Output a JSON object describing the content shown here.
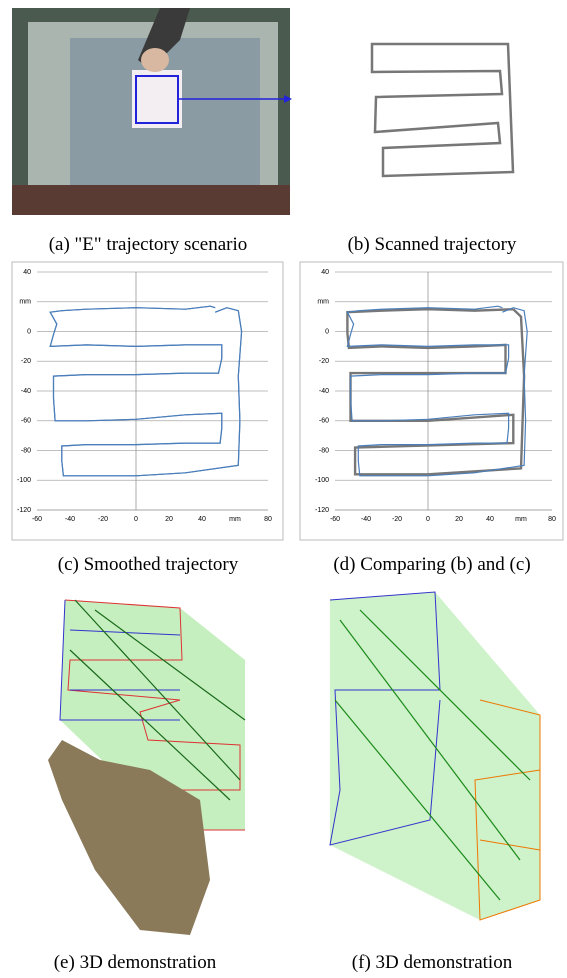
{
  "captions": [
    "(a) \"E\" trajectory scenario",
    "(b) Scanned trajectory",
    "(c) Smoothed trajectory",
    "(d) Comparing (b) and (c)",
    "(e) 3D demonstration",
    "(f) 3D demonstration"
  ],
  "chart_data": [
    {
      "type": "line",
      "xlim": [
        -60,
        80
      ],
      "ylim": [
        -120,
        40
      ],
      "xticks": [
        -60,
        -40,
        -20,
        0,
        20,
        40,
        {
          "value": 60,
          "label": "mm"
        },
        80
      ],
      "yticks": [
        -120,
        -100,
        -80,
        -60,
        -40,
        -20,
        0,
        {
          "value": 20,
          "label": "mm"
        },
        40
      ],
      "grid": true,
      "series": [
        {
          "color": "#4a7ebb",
          "x": [
            48,
            45,
            30,
            0,
            -30,
            -45,
            -52,
            -48,
            -50,
            -52,
            -30,
            0,
            30,
            52,
            52,
            50,
            30,
            0,
            -30,
            -50,
            -50,
            -49,
            -30,
            0,
            30,
            52,
            52,
            51,
            30,
            0,
            -30,
            -45,
            -45,
            -44,
            -20,
            0,
            30,
            62,
            63,
            62,
            64,
            62,
            55,
            48
          ],
          "y": [
            16,
            17,
            15,
            16,
            15,
            14,
            13,
            5,
            -2,
            -10,
            -9,
            -10,
            -9,
            -9,
            -18,
            -28,
            -28,
            -29,
            -29,
            -30,
            -45,
            -60,
            -60,
            -59,
            -56,
            -55,
            -65,
            -75,
            -75,
            -76,
            -76,
            -77,
            -87,
            -97,
            -97,
            -97,
            -95,
            -90,
            -60,
            -30,
            0,
            14,
            16,
            13
          ]
        },
        {
          "color": "#4a7ebb",
          "x": [
            48,
            45,
            30,
            0,
            -30,
            -45,
            -52,
            -48,
            -50,
            -52,
            -30,
            0,
            30,
            52,
            52,
            50,
            30,
            0,
            -30,
            -50,
            -50,
            -49,
            -30,
            0,
            30,
            52,
            52,
            51,
            30,
            0,
            -30,
            -45,
            -45,
            -44,
            -20,
            0,
            30,
            62,
            63,
            62,
            64,
            62,
            55,
            48
          ],
          "y": [
            16,
            17,
            15,
            16,
            15,
            14,
            13,
            5,
            -2,
            -10,
            -9,
            -10,
            -9,
            -9,
            -18,
            -28,
            -28,
            -29,
            -29,
            -30,
            -45,
            -60,
            -60,
            -59,
            -56,
            -55,
            -65,
            -75,
            -75,
            -76,
            -76,
            -77,
            -87,
            -97,
            -97,
            -97,
            -95,
            -90,
            -60,
            -30,
            0,
            14,
            16,
            13
          ]
        }
      ]
    },
    {
      "type": "line",
      "xlim": [
        -60,
        80
      ],
      "ylim": [
        -120,
        40
      ],
      "xticks": [
        -60,
        -40,
        -20,
        0,
        20,
        40,
        {
          "value": 60,
          "label": "mm"
        },
        80
      ],
      "yticks": [
        -120,
        -100,
        -80,
        -60,
        -40,
        -20,
        0,
        {
          "value": 20,
          "label": "mm"
        },
        40
      ],
      "grid": true,
      "series": [
        {
          "color": "#777777",
          "x": [
            55,
            30,
            0,
            -30,
            -52,
            -52,
            -51,
            -30,
            0,
            30,
            50,
            50,
            -50,
            -50,
            0,
            55,
            55,
            -47,
            -47,
            0,
            60,
            62,
            60,
            55
          ],
          "y": [
            15,
            14,
            15,
            14,
            13,
            -1,
            -11,
            -10,
            -11,
            -10,
            -9,
            -28,
            -28,
            -60,
            -60,
            -56,
            -75,
            -78,
            -96,
            -96,
            -92,
            -30,
            10,
            15
          ]
        },
        {
          "color": "#4a7ebb",
          "x": [
            48,
            45,
            30,
            0,
            -30,
            -45,
            -52,
            -48,
            -50,
            -52,
            -30,
            0,
            30,
            52,
            52,
            50,
            30,
            0,
            -30,
            -50,
            -50,
            -49,
            -30,
            0,
            30,
            52,
            52,
            51,
            30,
            0,
            -30,
            -45,
            -45,
            -44,
            -20,
            0,
            30,
            62,
            63,
            62,
            64,
            62,
            55,
            48
          ],
          "y": [
            16,
            17,
            15,
            16,
            15,
            14,
            13,
            5,
            -2,
            -10,
            -9,
            -10,
            -9,
            -9,
            -18,
            -28,
            -28,
            -29,
            -29,
            -30,
            -45,
            -60,
            -60,
            -59,
            -56,
            -55,
            -65,
            -75,
            -75,
            -76,
            -76,
            -77,
            -87,
            -97,
            -97,
            -97,
            -95,
            -90,
            -60,
            -30,
            0,
            14,
            16,
            13
          ]
        }
      ]
    }
  ]
}
